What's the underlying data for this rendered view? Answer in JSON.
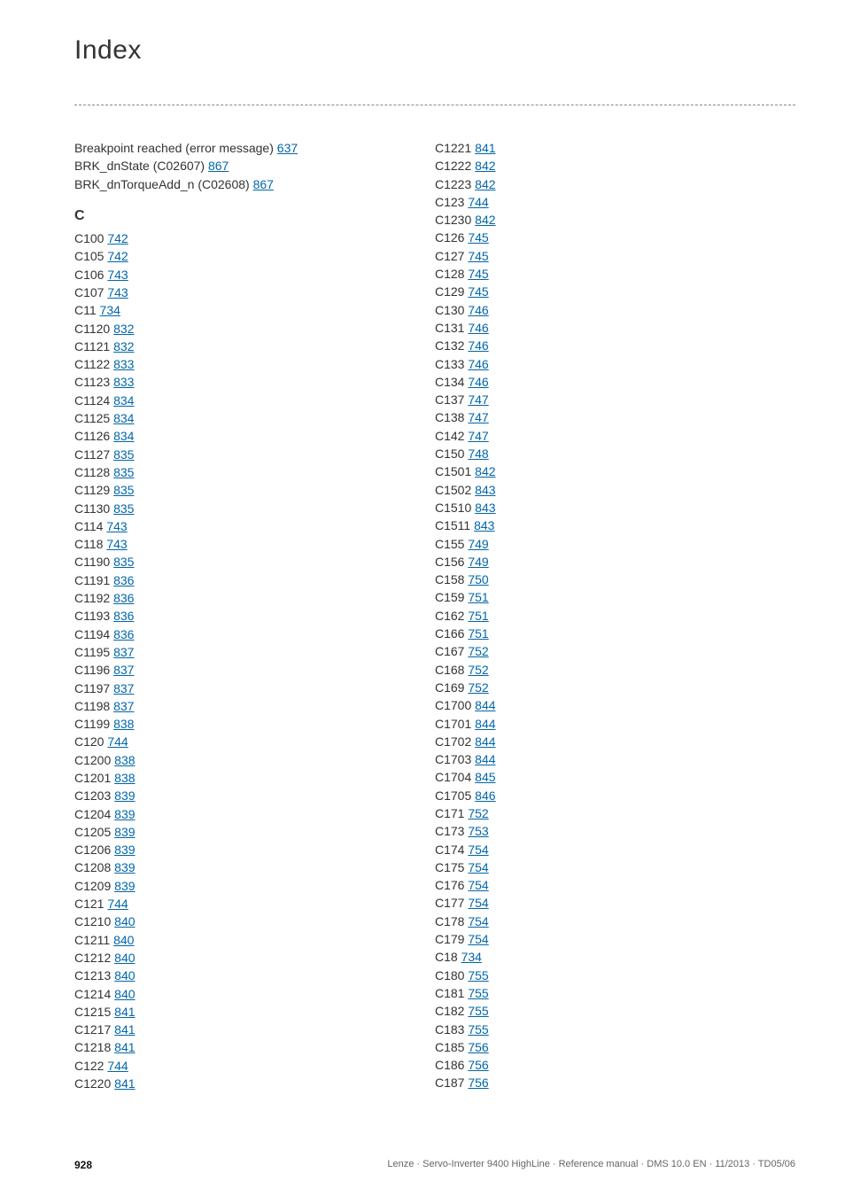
{
  "heading": "Index",
  "section_letter": "C",
  "link_color": "#0066aa",
  "text_color": "#333333",
  "col1_pre": [
    {
      "label": "Breakpoint reached (error message) ",
      "page": "637"
    },
    {
      "label": "BRK_dnState (C02607) ",
      "page": "867"
    },
    {
      "label": "BRK_dnTorqueAdd_n (C02608) ",
      "page": "867"
    }
  ],
  "col1": [
    {
      "label": "C100 ",
      "page": "742"
    },
    {
      "label": "C105 ",
      "page": "742"
    },
    {
      "label": "C106 ",
      "page": "743"
    },
    {
      "label": "C107 ",
      "page": "743"
    },
    {
      "label": "C11 ",
      "page": "734"
    },
    {
      "label": "C1120 ",
      "page": "832"
    },
    {
      "label": "C1121 ",
      "page": "832"
    },
    {
      "label": "C1122 ",
      "page": "833"
    },
    {
      "label": "C1123 ",
      "page": "833"
    },
    {
      "label": "C1124 ",
      "page": "834"
    },
    {
      "label": "C1125 ",
      "page": "834"
    },
    {
      "label": "C1126 ",
      "page": "834"
    },
    {
      "label": "C1127 ",
      "page": "835"
    },
    {
      "label": "C1128 ",
      "page": "835"
    },
    {
      "label": "C1129 ",
      "page": "835"
    },
    {
      "label": "C1130 ",
      "page": "835"
    },
    {
      "label": "C114 ",
      "page": "743"
    },
    {
      "label": "C118 ",
      "page": "743"
    },
    {
      "label": "C1190 ",
      "page": "835"
    },
    {
      "label": "C1191 ",
      "page": "836"
    },
    {
      "label": "C1192 ",
      "page": "836"
    },
    {
      "label": "C1193 ",
      "page": "836"
    },
    {
      "label": "C1194 ",
      "page": "836"
    },
    {
      "label": "C1195 ",
      "page": "837"
    },
    {
      "label": "C1196 ",
      "page": "837"
    },
    {
      "label": "C1197 ",
      "page": "837"
    },
    {
      "label": "C1198 ",
      "page": "837"
    },
    {
      "label": "C1199 ",
      "page": "838"
    },
    {
      "label": "C120 ",
      "page": "744"
    },
    {
      "label": "C1200 ",
      "page": "838"
    },
    {
      "label": "C1201 ",
      "page": "838"
    },
    {
      "label": "C1203 ",
      "page": "839"
    },
    {
      "label": "C1204 ",
      "page": "839"
    },
    {
      "label": "C1205 ",
      "page": "839"
    },
    {
      "label": "C1206 ",
      "page": "839"
    },
    {
      "label": "C1208 ",
      "page": "839"
    },
    {
      "label": "C1209 ",
      "page": "839"
    },
    {
      "label": "C121 ",
      "page": "744"
    },
    {
      "label": "C1210 ",
      "page": "840"
    },
    {
      "label": "C1211 ",
      "page": "840"
    },
    {
      "label": "C1212 ",
      "page": "840"
    },
    {
      "label": "C1213 ",
      "page": "840"
    },
    {
      "label": "C1214 ",
      "page": "840"
    },
    {
      "label": "C1215 ",
      "page": "841"
    },
    {
      "label": "C1217 ",
      "page": "841"
    },
    {
      "label": "C1218 ",
      "page": "841"
    },
    {
      "label": "C122 ",
      "page": "744"
    },
    {
      "label": "C1220 ",
      "page": "841"
    }
  ],
  "col2": [
    {
      "label": "C1221 ",
      "page": "841"
    },
    {
      "label": "C1222 ",
      "page": "842"
    },
    {
      "label": "C1223 ",
      "page": "842"
    },
    {
      "label": "C123 ",
      "page": "744"
    },
    {
      "label": "C1230 ",
      "page": "842"
    },
    {
      "label": "C126 ",
      "page": "745"
    },
    {
      "label": "C127 ",
      "page": "745"
    },
    {
      "label": "C128 ",
      "page": "745"
    },
    {
      "label": "C129 ",
      "page": "745"
    },
    {
      "label": "C130 ",
      "page": "746"
    },
    {
      "label": "C131 ",
      "page": "746"
    },
    {
      "label": "C132 ",
      "page": "746"
    },
    {
      "label": "C133 ",
      "page": "746"
    },
    {
      "label": "C134 ",
      "page": "746"
    },
    {
      "label": "C137 ",
      "page": "747"
    },
    {
      "label": "C138 ",
      "page": "747"
    },
    {
      "label": "C142 ",
      "page": "747"
    },
    {
      "label": "C150 ",
      "page": "748"
    },
    {
      "label": "C1501 ",
      "page": "842"
    },
    {
      "label": "C1502 ",
      "page": "843"
    },
    {
      "label": "C1510 ",
      "page": "843"
    },
    {
      "label": "C1511 ",
      "page": "843"
    },
    {
      "label": "C155 ",
      "page": "749"
    },
    {
      "label": "C156 ",
      "page": "749"
    },
    {
      "label": "C158 ",
      "page": "750"
    },
    {
      "label": "C159 ",
      "page": "751"
    },
    {
      "label": "C162 ",
      "page": "751"
    },
    {
      "label": "C166 ",
      "page": "751"
    },
    {
      "label": "C167 ",
      "page": "752"
    },
    {
      "label": "C168 ",
      "page": "752"
    },
    {
      "label": "C169 ",
      "page": "752"
    },
    {
      "label": "C1700 ",
      "page": "844"
    },
    {
      "label": "C1701 ",
      "page": "844"
    },
    {
      "label": "C1702 ",
      "page": "844"
    },
    {
      "label": "C1703 ",
      "page": "844"
    },
    {
      "label": "C1704 ",
      "page": "845"
    },
    {
      "label": "C1705 ",
      "page": "846"
    },
    {
      "label": "C171 ",
      "page": "752"
    },
    {
      "label": "C173 ",
      "page": "753"
    },
    {
      "label": "C174 ",
      "page": "754"
    },
    {
      "label": "C175 ",
      "page": "754"
    },
    {
      "label": "C176 ",
      "page": "754"
    },
    {
      "label": "C177 ",
      "page": "754"
    },
    {
      "label": "C178 ",
      "page": "754"
    },
    {
      "label": "C179 ",
      "page": "754"
    },
    {
      "label": "C18 ",
      "page": "734"
    },
    {
      "label": "C180 ",
      "page": "755"
    },
    {
      "label": "C181 ",
      "page": "755"
    },
    {
      "label": "C182 ",
      "page": "755"
    },
    {
      "label": "C183 ",
      "page": "755"
    },
    {
      "label": "C185 ",
      "page": "756"
    },
    {
      "label": "C186 ",
      "page": "756"
    },
    {
      "label": "C187 ",
      "page": "756"
    }
  ],
  "footer": {
    "page_number": "928",
    "doc_info": "Lenze · Servo-Inverter 9400 HighLine · Reference manual · DMS 10.0 EN · 11/2013 · TD05/06"
  }
}
